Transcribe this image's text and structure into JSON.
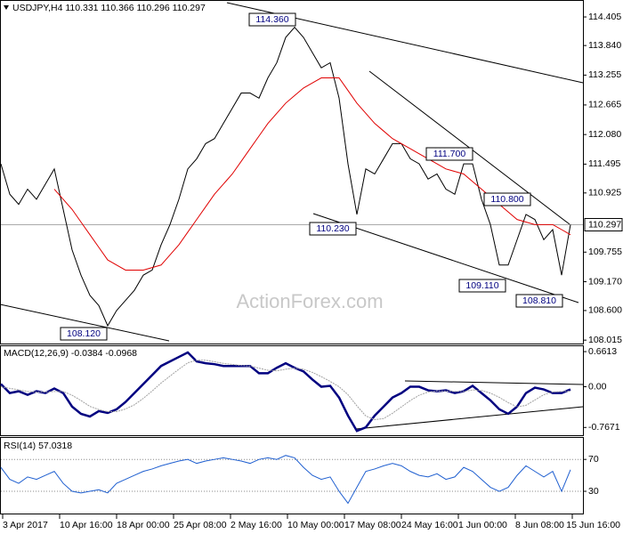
{
  "chart_data": [
    {
      "type": "line",
      "title": "USDJPY,H4  110.331 110.366 110.296 110.297",
      "watermark": "ActionForex.com",
      "series": [
        {
          "color": "#000000",
          "values": [
            111.5,
            110.9,
            110.7,
            111.0,
            110.8,
            111.1,
            111.4,
            110.6,
            109.8,
            109.3,
            108.9,
            108.7,
            108.3,
            108.6,
            108.8,
            109.0,
            109.3,
            109.4,
            109.9,
            110.3,
            110.8,
            111.4,
            111.6,
            111.9,
            112.0,
            112.3,
            112.6,
            112.9,
            112.9,
            112.8,
            113.2,
            113.5,
            114.0,
            114.2,
            114.0,
            113.7,
            113.4,
            113.5,
            112.8,
            111.5,
            110.5,
            111.4,
            111.3,
            111.6,
            111.9,
            111.9,
            111.6,
            111.5,
            111.2,
            111.3,
            111.0,
            110.9,
            111.5,
            111.5,
            110.8,
            110.3,
            109.5,
            109.5,
            110.0,
            110.5,
            110.4,
            110.0,
            110.2,
            109.3,
            110.3
          ]
        },
        {
          "color": "#e00000",
          "values": [
            null,
            null,
            null,
            null,
            null,
            null,
            111.0,
            110.8,
            110.6,
            110.35,
            110.1,
            109.85,
            109.6,
            109.5,
            109.4,
            109.4,
            109.4,
            109.45,
            109.5,
            109.7,
            109.9,
            110.15,
            110.4,
            110.65,
            110.9,
            111.1,
            111.3,
            111.55,
            111.8,
            112.05,
            112.3,
            112.5,
            112.7,
            112.85,
            113.0,
            113.1,
            113.2,
            113.2,
            113.2,
            112.95,
            112.7,
            112.5,
            112.3,
            112.15,
            112.0,
            111.9,
            111.8,
            111.7,
            111.6,
            111.5,
            111.4,
            111.35,
            111.3,
            111.15,
            111.0,
            110.85,
            110.7,
            110.55,
            110.4,
            110.35,
            110.3,
            110.3,
            110.3,
            110.2,
            110.1
          ]
        }
      ],
      "current_price": 110.297,
      "annotations": [
        "114.360",
        "111.700",
        "110.800",
        "110.230",
        "109.110",
        "108.810",
        "108.120"
      ],
      "ylim": [
        107.93,
        114.74
      ],
      "yticks": [
        114.405,
        {
          "value": 113.84,
          "label": "113.840"
        },
        113.255,
        112.665,
        {
          "value": 112.08,
          "label": "112.080"
        },
        111.495,
        110.925,
        109.755,
        {
          "value": 109.17,
          "label": "109.170"
        },
        {
          "value": 108.6,
          "label": "108.600"
        },
        108.015
      ]
    },
    {
      "type": "line",
      "title": "MACD(12,26,9) -0.0384 -0.0968",
      "series": [
        {
          "color": "#000080",
          "values": [
            0.051,
            -0.119,
            -0.085,
            -0.153,
            -0.085,
            -0.119,
            -0.034,
            -0.119,
            -0.374,
            -0.51,
            -0.561,
            -0.459,
            -0.493,
            -0.425,
            -0.289,
            -0.119,
            0.051,
            0.221,
            0.391,
            0.476,
            0.561,
            0.646,
            0.476,
            0.442,
            0.425,
            0.391,
            0.391,
            0.391,
            0.391,
            0.255,
            0.255,
            0.357,
            0.442,
            0.357,
            0.289,
            0.136,
            0,
            0.017,
            -0.204,
            -0.544,
            -0.833,
            -0.765,
            -0.544,
            -0.374,
            -0.204,
            -0.119,
            0,
            0,
            -0.068,
            -0.085,
            -0.068,
            -0.119,
            -0.085,
            0.017,
            -0.119,
            -0.255,
            -0.425,
            -0.51,
            -0.374,
            -0.119,
            -0.017,
            -0.051,
            -0.119,
            -0.119,
            -0.051
          ]
        },
        {
          "color": "#a0a0a0",
          "values": [
            0.0,
            -0.03,
            -0.06,
            -0.09,
            -0.1,
            -0.1,
            -0.09,
            -0.09,
            -0.16,
            -0.26,
            -0.37,
            -0.43,
            -0.47,
            -0.47,
            -0.42,
            -0.34,
            -0.22,
            -0.08,
            0.07,
            0.2,
            0.33,
            0.45,
            0.5,
            0.5,
            0.47,
            0.44,
            0.42,
            0.4,
            0.39,
            0.35,
            0.31,
            0.3,
            0.33,
            0.35,
            0.33,
            0.27,
            0.19,
            0.1,
            0.0,
            -0.15,
            -0.36,
            -0.55,
            -0.62,
            -0.6,
            -0.5,
            -0.38,
            -0.26,
            -0.16,
            -0.1,
            -0.08,
            -0.08,
            -0.09,
            -0.09,
            -0.06,
            -0.07,
            -0.12,
            -0.2,
            -0.3,
            -0.38,
            -0.35,
            -0.25,
            -0.15,
            -0.1,
            -0.09,
            -0.08
          ]
        }
      ],
      "ylim": [
        -0.93,
        0.78
      ],
      "yticks": [
        0.6613,
        {
          "value": 0,
          "label": "0.00"
        },
        -0.7671
      ]
    },
    {
      "type": "line",
      "title": "RSI(14) 57.0318",
      "series": [
        {
          "color": "#1f5fd0",
          "values": [
            60,
            45,
            40,
            48,
            45,
            50,
            55,
            40,
            30,
            28,
            30,
            32,
            28,
            40,
            45,
            50,
            55,
            58,
            62,
            65,
            68,
            70,
            65,
            68,
            70,
            72,
            70,
            68,
            65,
            70,
            72,
            70,
            75,
            72,
            60,
            50,
            45,
            48,
            30,
            15,
            35,
            55,
            58,
            62,
            65,
            62,
            55,
            50,
            48,
            52,
            45,
            48,
            60,
            55,
            45,
            35,
            30,
            35,
            50,
            62,
            55,
            48,
            55,
            30,
            57
          ]
        }
      ],
      "ylim": [
        1,
        97
      ],
      "yticks": [
        70,
        30
      ],
      "grid": true
    }
  ],
  "time_axis": [
    "3 Apr 2017",
    "10 Apr 16:00",
    "18 Apr 00:00",
    "25 Apr 08:00",
    "2 May 16:00",
    "10 May 00:00",
    "17 May 08:00",
    "24 May 16:00",
    "1 Jun 00:00",
    "8 Jun 08:00",
    "15 Jun 16:00"
  ]
}
